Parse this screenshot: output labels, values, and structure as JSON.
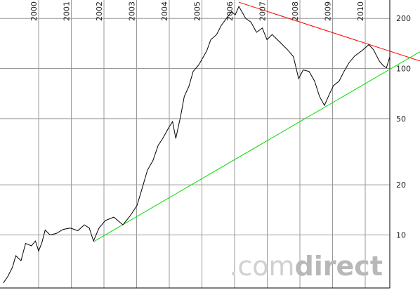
{
  "chart_data": {
    "type": "line",
    "log_scale": true,
    "grid": true,
    "xlim": [
      1998.817,
      2011.677
    ],
    "ylim": [
      4.8,
      258
    ],
    "xticks": [
      2000,
      2001,
      2002,
      2003,
      2004,
      2005,
      2006,
      2007,
      2008,
      2009,
      2010
    ],
    "yticks": [
      10,
      20,
      50,
      100,
      200
    ],
    "series": [
      {
        "color": "#000000",
        "x": [
          1998.92,
          1999.05,
          1999.2,
          1999.3,
          1999.46,
          1999.6,
          1999.78,
          1999.9,
          2000.0,
          2000.1,
          2000.2,
          2000.35,
          2000.54,
          2000.75,
          2000.97,
          2001.2,
          2001.4,
          2001.55,
          2001.68,
          2001.85,
          2002.04,
          2002.3,
          2002.58,
          2002.8,
          2003.01,
          2003.15,
          2003.33,
          2003.5,
          2003.66,
          2003.8,
          2003.98,
          2004.1,
          2004.2,
          2004.35,
          2004.46,
          2004.6,
          2004.73,
          2004.9,
          2005.06,
          2005.15,
          2005.27,
          2005.45,
          2005.59,
          2005.75,
          2005.91,
          2006.02,
          2006.13,
          2006.25,
          2006.34,
          2006.5,
          2006.67,
          2006.85,
          2006.99,
          2007.15,
          2007.31,
          2007.45,
          2007.63,
          2007.8,
          2007.96,
          2008.1,
          2008.28,
          2008.45,
          2008.6,
          2008.75,
          2008.9,
          2009.03,
          2009.2,
          2009.35,
          2009.5,
          2009.68,
          2009.9,
          2010.11,
          2010.25,
          2010.43,
          2010.55,
          2010.65,
          2010.75
        ],
        "values": [
          5.15,
          5.6,
          6.4,
          7.5,
          7.0,
          8.9,
          8.6,
          9.2,
          8.0,
          9.0,
          10.7,
          10.0,
          10.2,
          10.8,
          11.0,
          10.6,
          11.5,
          11.0,
          9.2,
          11.0,
          12.2,
          12.8,
          11.5,
          13.0,
          15.0,
          18.5,
          24.5,
          28.0,
          34.5,
          38.0,
          44.0,
          48.0,
          38.0,
          52.0,
          68.0,
          78.0,
          96.0,
          105.0,
          119.0,
          128.0,
          149.0,
          160.0,
          181.0,
          200.0,
          220.0,
          210.0,
          236.0,
          215.0,
          200.0,
          190.0,
          165.0,
          175.0,
          149.0,
          160.0,
          149.0,
          140.0,
          129.0,
          118.0,
          87.0,
          98.0,
          96.0,
          84.0,
          68.0,
          60.0,
          70.0,
          79.0,
          84.0,
          96.0,
          108.0,
          119.0,
          128.0,
          139.0,
          130.0,
          111.0,
          104.0,
          101.0,
          117.0
        ]
      }
    ],
    "trendlines": [
      {
        "color": "#ff0000",
        "x": [
          2006.13,
          2011.677
        ],
        "values": [
          250,
          111
        ]
      },
      {
        "color": "#00dd00",
        "x": [
          2001.68,
          2011.677
        ],
        "values": [
          9.1,
          126
        ]
      }
    ],
    "watermark": [
      ".com",
      "direct"
    ]
  }
}
